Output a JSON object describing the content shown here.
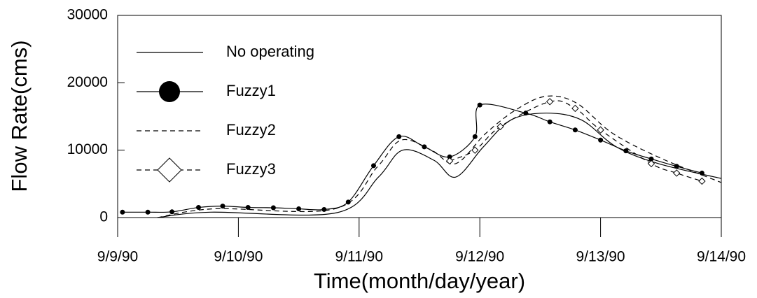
{
  "chart_data": {
    "type": "line",
    "xlabel": "Time(month/day/year)",
    "ylabel": "Flow Rate(cms)",
    "xlim": [
      0,
      5
    ],
    "ylim": [
      0,
      30000
    ],
    "xticks": [
      {
        "value": 0,
        "label": "9/9/90"
      },
      {
        "value": 1,
        "label": "9/10/90"
      },
      {
        "value": 2,
        "label": "9/11/90"
      },
      {
        "value": 3,
        "label": "9/12/90"
      },
      {
        "value": 4,
        "label": "9/13/90"
      },
      {
        "value": 5,
        "label": "9/14/90"
      }
    ],
    "yticks": [
      0,
      10000,
      20000,
      30000
    ],
    "legend": "upper left",
    "series": [
      {
        "name": "No operating",
        "color": "#000000",
        "dash": "solid",
        "marker": "none",
        "x": [
          0.33,
          0.77,
          1.81,
          2.16,
          2.36,
          2.62,
          2.8,
          3.03,
          3.26,
          3.55,
          3.84,
          4.13,
          4.48,
          5.0
        ],
        "values": [
          0,
          800,
          700,
          6000,
          10000,
          8500,
          6000,
          10500,
          14500,
          15500,
          14500,
          10500,
          8000,
          5800
        ]
      },
      {
        "name": "Fuzzy1",
        "color": "#000000",
        "dash": "solid",
        "marker": "circle",
        "x": [
          0.04,
          0.25,
          0.45,
          0.67,
          0.87,
          1.08,
          1.29,
          1.5,
          1.71,
          1.91,
          2.12,
          2.33,
          2.54,
          2.75,
          2.96,
          3.0,
          3.38,
          3.58,
          3.79,
          4.0,
          4.21,
          4.42,
          4.63,
          4.84
        ],
        "values": [
          800,
          800,
          850,
          1500,
          1700,
          1500,
          1450,
          1300,
          1200,
          2300,
          7700,
          12000,
          10500,
          9000,
          12000,
          16700,
          15500,
          14200,
          13000,
          11500,
          9900,
          8700,
          7600,
          6600
        ]
      },
      {
        "name": "Fuzzy2",
        "color": "#000000",
        "dash": "dashed",
        "marker": "none",
        "x": [
          0.33,
          0.8,
          1.8,
          2.15,
          2.35,
          2.6,
          2.8,
          3.05,
          3.3,
          3.55,
          3.8,
          4.1,
          4.5,
          5.0
        ],
        "values": [
          0,
          1300,
          1300,
          7500,
          11500,
          10000,
          8000,
          12500,
          16000,
          18000,
          17000,
          12500,
          8800,
          5200
        ]
      },
      {
        "name": "Fuzzy3",
        "color": "#000000",
        "dash": "dashed",
        "marker": "diamond",
        "x": [
          2.75,
          2.96,
          3.17,
          3.58,
          3.79,
          4.0,
          4.42,
          4.63,
          4.84
        ],
        "values": [
          8400,
          10000,
          13500,
          17200,
          16200,
          13000,
          8000,
          6600,
          5400
        ]
      }
    ]
  }
}
